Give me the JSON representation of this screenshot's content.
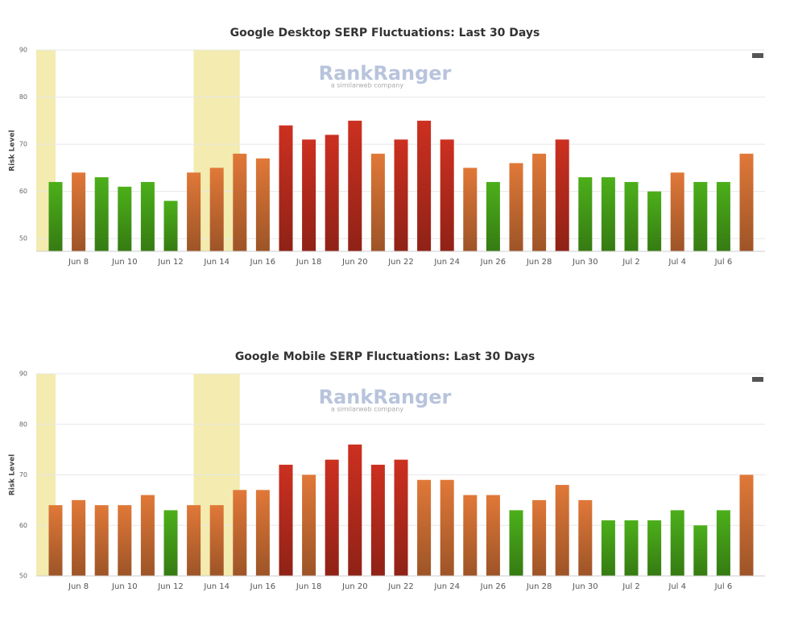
{
  "chart_data": [
    {
      "type": "bar",
      "title": "Google Desktop SERP Fluctuations: Last 30 Days",
      "y_label": "Risk Level",
      "watermark": "RankRanger",
      "watermark_sub": "a similarweb company",
      "categories": [
        null,
        "Jun 8",
        null,
        "Jun 10",
        null,
        "Jun 12",
        null,
        "Jun 14",
        null,
        "Jun 16",
        null,
        "Jun 18",
        null,
        "Jun 20",
        null,
        "Jun 22",
        null,
        "Jun 24",
        null,
        "Jun 26",
        null,
        "Jun 28",
        null,
        "Jun 30",
        null,
        "Jul 2",
        null,
        "Jul 4",
        null,
        "Jul 6",
        null
      ],
      "values": [
        62,
        64,
        63,
        61,
        62,
        58,
        64,
        65,
        68,
        67,
        74,
        71,
        72,
        75,
        68,
        71,
        75,
        71,
        65,
        62,
        66,
        68,
        71,
        63,
        63,
        62,
        60,
        64,
        62,
        62,
        68
      ],
      "colors": [
        "#4caf1a",
        "#e07838",
        "#4caf1a",
        "#4caf1a",
        "#4caf1a",
        "#4caf1a",
        "#e07838",
        "#e07838",
        "#e07838",
        "#e07838",
        "#cc3020",
        "#cc3020",
        "#cc3020",
        "#cc3020",
        "#e07838",
        "#cc3020",
        "#cc3020",
        "#cc3020",
        "#e07838",
        "#4caf1a",
        "#e07838",
        "#e07838",
        "#cc3020",
        "#4caf1a",
        "#4caf1a",
        "#4caf1a",
        "#4caf1a",
        "#e07838",
        "#4caf1a",
        "#4caf1a",
        "#e07838"
      ],
      "highlights": [
        [
          -1,
          0
        ],
        [
          6,
          8
        ]
      ],
      "highlight_color": "#f3ebaf",
      "ylim": [
        47.3,
        90
      ],
      "yticks": [
        50,
        60,
        70,
        80,
        90
      ],
      "grid": true
    },
    {
      "type": "bar",
      "title": "Google Mobile SERP Fluctuations: Last 30 Days",
      "y_label": "Risk Level",
      "watermark": "RankRanger",
      "watermark_sub": "a similarweb company",
      "categories": [
        null,
        "Jun 8",
        null,
        "Jun 10",
        null,
        "Jun 12",
        null,
        "Jun 14",
        null,
        "Jun 16",
        null,
        "Jun 18",
        null,
        "Jun 20",
        null,
        "Jun 22",
        null,
        "Jun 24",
        null,
        "Jun 26",
        null,
        "Jun 28",
        null,
        "Jun 30",
        null,
        "Jul 2",
        null,
        "Jul 4",
        null,
        "Jul 6",
        null
      ],
      "values": [
        64,
        65,
        64,
        64,
        66,
        63,
        64,
        64,
        67,
        67,
        72,
        70,
        73,
        76,
        72,
        73,
        69,
        69,
        66,
        66,
        63,
        65,
        68,
        65,
        61,
        61,
        61,
        63,
        60,
        63,
        70
      ],
      "colors": [
        "#e07838",
        "#e07838",
        "#e07838",
        "#e07838",
        "#e07838",
        "#4caf1a",
        "#e07838",
        "#e07838",
        "#e07838",
        "#e07838",
        "#cc3020",
        "#e07838",
        "#cc3020",
        "#cc3020",
        "#cc3020",
        "#cc3020",
        "#e07838",
        "#e07838",
        "#e07838",
        "#e07838",
        "#4caf1a",
        "#e07838",
        "#e07838",
        "#e07838",
        "#4caf1a",
        "#4caf1a",
        "#4caf1a",
        "#4caf1a",
        "#4caf1a",
        "#4caf1a",
        "#e07838"
      ],
      "highlights": [
        [
          -1,
          0
        ],
        [
          6,
          8
        ]
      ],
      "highlight_color": "#f3ebaf",
      "ylim": [
        50,
        90
      ],
      "yticks": [
        50,
        60,
        70,
        80,
        90
      ],
      "grid": true
    }
  ]
}
